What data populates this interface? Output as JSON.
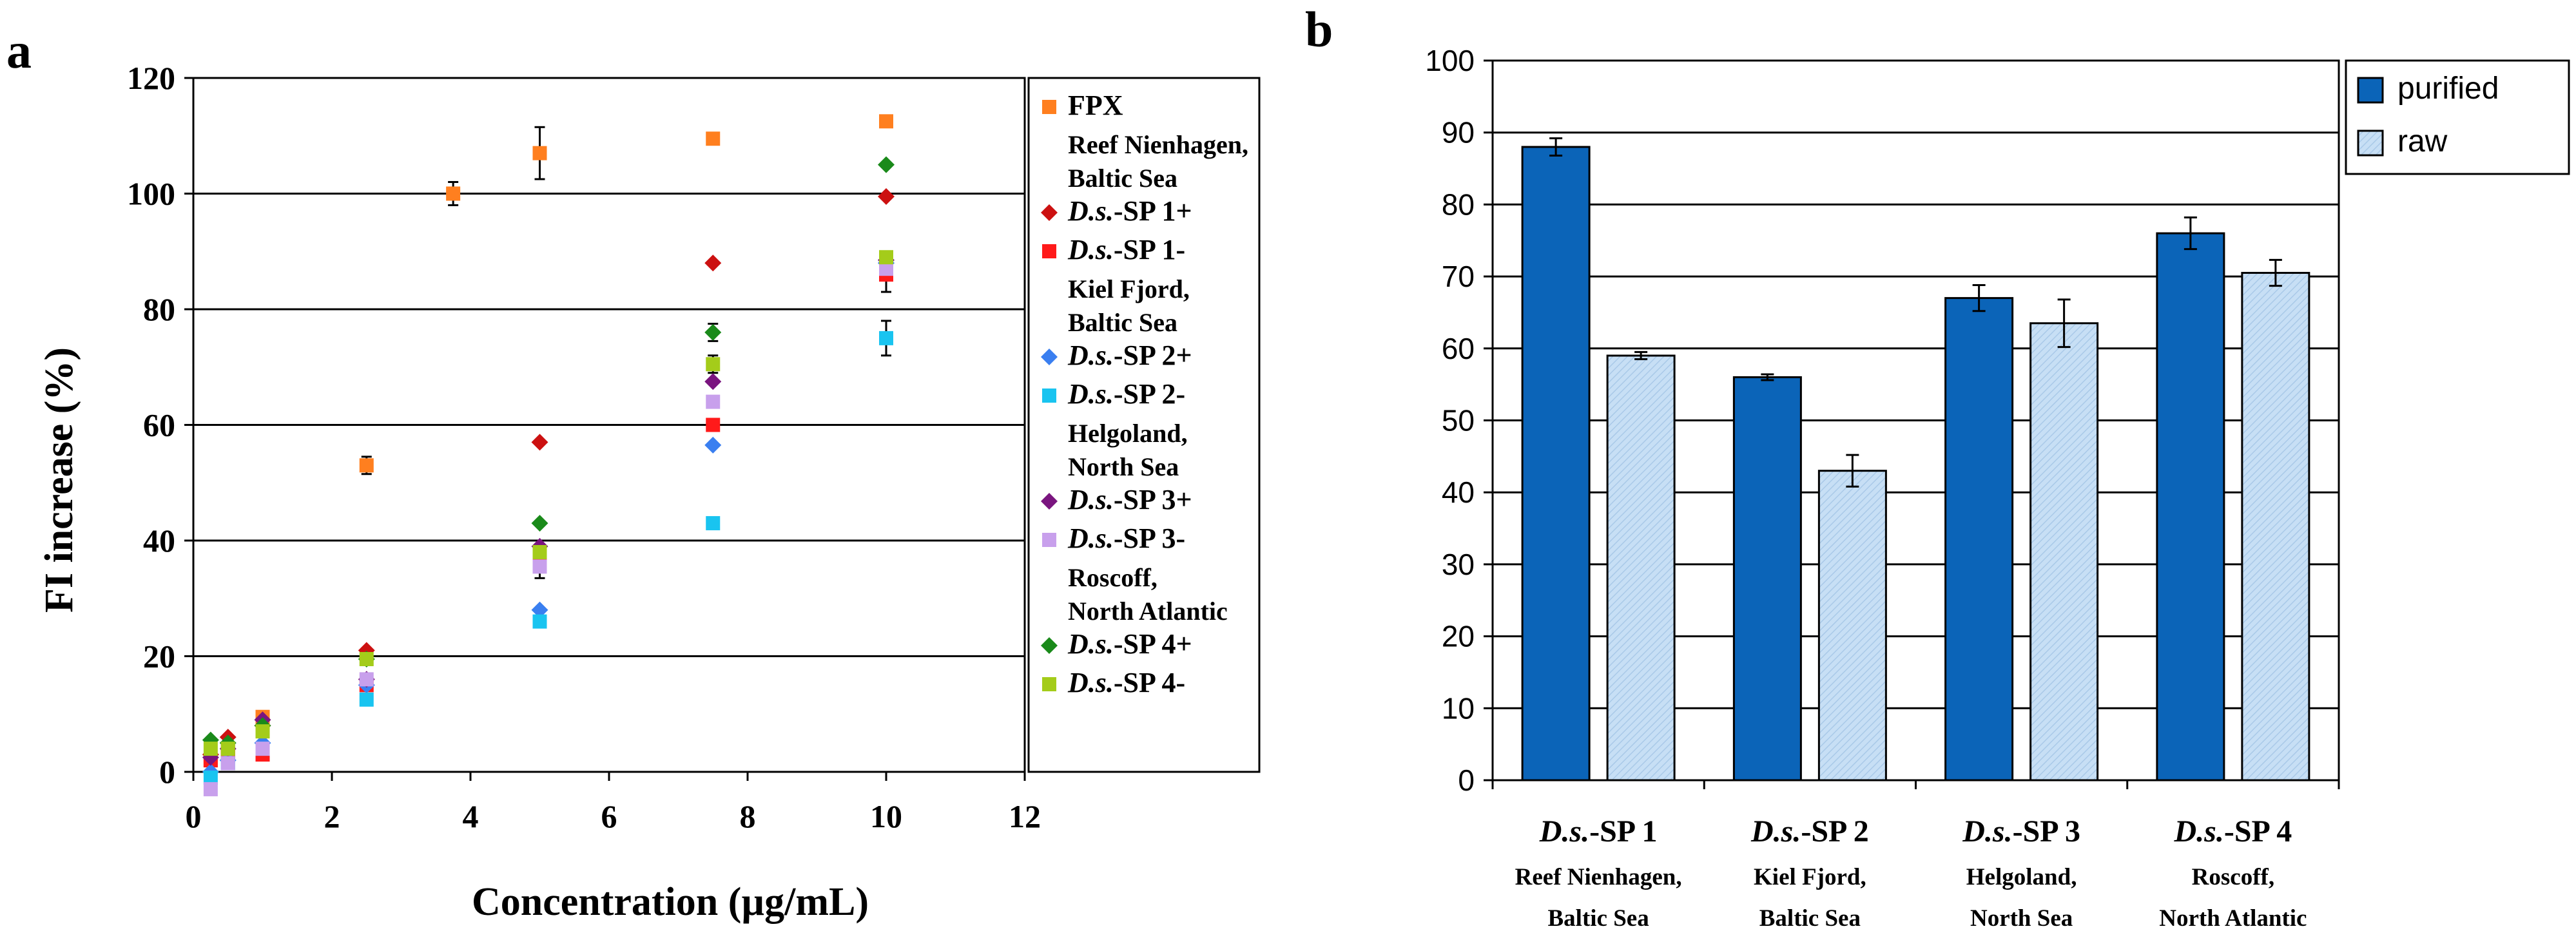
{
  "panel_labels": {
    "a": "a",
    "b": "b"
  },
  "colors": {
    "FPX": "#ff7f1f",
    "sp1p": "#cc1111",
    "sp1m": "#ff1a1a",
    "sp2p": "#3a7ff0",
    "sp2m": "#19c4f0",
    "sp3p": "#7a157f",
    "sp3m": "#c8a0ec",
    "sp4p": "#1a8a1a",
    "sp4m": "#a4cc1a",
    "purified": "#0b64b8",
    "raw": "#c7dff5"
  },
  "chart_data": [
    {
      "type": "scatter",
      "title": "",
      "xlabel": "Concentration (µg/mL)",
      "ylabel": "FI increase (%)",
      "xlim": [
        0,
        12
      ],
      "ylim": [
        0,
        120
      ],
      "xticks": [
        "0",
        "2",
        "4",
        "6",
        "8",
        "10",
        "12"
      ],
      "yticks": [
        "0",
        "20",
        "40",
        "60",
        "80",
        "100",
        "120"
      ],
      "legend": {
        "position": "right",
        "groups": [
          {
            "header": "",
            "entries": [
              {
                "series": "FPX",
                "label": "FPX"
              }
            ]
          },
          {
            "header": "Reef Nienhagen, Baltic Sea",
            "entries": [
              {
                "series": "sp1p",
                "prefix": "D.s.",
                "label": "-SP 1+"
              },
              {
                "series": "sp1m",
                "prefix": "D.s.",
                "label": "-SP 1-"
              }
            ]
          },
          {
            "header": "Kiel Fjord, Baltic Sea",
            "entries": [
              {
                "series": "sp2p",
                "prefix": "D.s.",
                "label": "-SP 2+"
              },
              {
                "series": "sp2m",
                "prefix": "D.s.",
                "label": "-SP 2-"
              }
            ]
          },
          {
            "header": "Helgoland, North Sea",
            "entries": [
              {
                "series": "sp3p",
                "prefix": "D.s.",
                "label": "-SP 3+"
              },
              {
                "series": "sp3m",
                "prefix": "D.s.",
                "label": "-SP 3-"
              }
            ]
          },
          {
            "header": "Roscoff, North Atlantic",
            "entries": [
              {
                "series": "sp4p",
                "prefix": "D.s.",
                "label": "-SP 4+"
              },
              {
                "series": "sp4m",
                "prefix": "D.s.",
                "label": "-SP 4-"
              }
            ]
          }
        ]
      },
      "series": [
        {
          "key": "FPX",
          "name": "FPX",
          "marker": "square",
          "points": [
            [
              0.25,
              2
            ],
            [
              0.5,
              4
            ],
            [
              1,
              9.5
            ],
            [
              2.5,
              53
            ],
            [
              3.75,
              100
            ],
            [
              5,
              107
            ],
            [
              7.5,
              109.5
            ],
            [
              10,
              112.5
            ]
          ],
          "errors": [
            0,
            0,
            0,
            1.5,
            2,
            4.5,
            1,
            1
          ]
        },
        {
          "key": "sp1p",
          "name": "D.s.-SP 1+",
          "marker": "diamond",
          "points": [
            [
              0.25,
              3
            ],
            [
              0.5,
              6
            ],
            [
              1,
              8
            ],
            [
              2.5,
              21
            ],
            [
              5,
              57
            ],
            [
              7.5,
              88
            ],
            [
              10,
              99.5
            ]
          ],
          "errors": [
            0,
            0,
            0,
            0,
            0,
            0,
            0
          ]
        },
        {
          "key": "sp1m",
          "name": "D.s.-SP 1-",
          "marker": "square",
          "points": [
            [
              0.25,
              2
            ],
            [
              0.5,
              3
            ],
            [
              1,
              3
            ],
            [
              2.5,
              15
            ],
            [
              5,
              37
            ],
            [
              7.5,
              60
            ],
            [
              10,
              86
            ]
          ],
          "errors": [
            0,
            0,
            0,
            0,
            0,
            0,
            3
          ]
        },
        {
          "key": "sp2p",
          "name": "D.s.-SP 2+",
          "marker": "diamond",
          "points": [
            [
              0.25,
              0
            ],
            [
              0.5,
              2
            ],
            [
              1,
              5
            ],
            [
              2.5,
              15
            ],
            [
              5,
              28
            ],
            [
              7.5,
              56.5
            ],
            [
              10,
              88
            ]
          ],
          "errors": [
            0,
            0,
            0,
            0,
            0,
            0,
            0
          ]
        },
        {
          "key": "sp2m",
          "name": "D.s.-SP 2-",
          "marker": "square",
          "points": [
            [
              0.25,
              -1
            ],
            [
              0.5,
              1.5
            ],
            [
              1,
              4
            ],
            [
              2.5,
              12.5
            ],
            [
              5,
              26
            ],
            [
              7.5,
              43
            ],
            [
              10,
              75
            ]
          ],
          "errors": [
            0,
            0,
            0,
            0,
            0,
            0,
            3
          ]
        },
        {
          "key": "sp3p",
          "name": "D.s.-SP 3+",
          "marker": "diamond",
          "points": [
            [
              0.25,
              2.5
            ],
            [
              0.5,
              4
            ],
            [
              1,
              9
            ],
            [
              2.5,
              16
            ],
            [
              5,
              39
            ],
            [
              7.5,
              67.5
            ],
            [
              10,
              88.5
            ]
          ],
          "errors": [
            0,
            0,
            0,
            0,
            0,
            0,
            0
          ]
        },
        {
          "key": "sp3m",
          "name": "D.s.-SP 3-",
          "marker": "square",
          "points": [
            [
              0.25,
              -3
            ],
            [
              0.5,
              1.5
            ],
            [
              1,
              4
            ],
            [
              2.5,
              16
            ],
            [
              5,
              35.5
            ],
            [
              7.5,
              64
            ],
            [
              10,
              87
            ]
          ],
          "errors": [
            0,
            0,
            0,
            0,
            2,
            0,
            0
          ]
        },
        {
          "key": "sp4p",
          "name": "D.s.-SP 4+",
          "marker": "diamond",
          "points": [
            [
              0.25,
              5.5
            ],
            [
              0.5,
              5
            ],
            [
              1,
              8
            ],
            [
              2.5,
              19.5
            ],
            [
              5,
              43
            ],
            [
              7.5,
              76
            ],
            [
              10,
              105
            ]
          ],
          "errors": [
            0,
            0,
            0,
            0,
            0,
            1.5,
            0
          ]
        },
        {
          "key": "sp4m",
          "name": "D.s.-SP 4-",
          "marker": "square",
          "points": [
            [
              0.25,
              4
            ],
            [
              0.5,
              4
            ],
            [
              1,
              7
            ],
            [
              2.5,
              19.5
            ],
            [
              5,
              38
            ],
            [
              7.5,
              70.5
            ],
            [
              10,
              89
            ]
          ],
          "errors": [
            0,
            0,
            0,
            0,
            0,
            1.5,
            0
          ]
        }
      ]
    },
    {
      "type": "bar",
      "title": "",
      "xlabel": "",
      "ylabel": "",
      "ylim": [
        0,
        100
      ],
      "yticks": [
        "0",
        "10",
        "20",
        "30",
        "40",
        "50",
        "60",
        "70",
        "80",
        "90",
        "100"
      ],
      "grid": true,
      "categories": [
        {
          "prefix": "D.s.",
          "name": "-SP 1",
          "sub1": "Reef Nienhagen,",
          "sub2": "Baltic Sea"
        },
        {
          "prefix": "D.s.",
          "name": "-SP 2",
          "sub1": "Kiel Fjord,",
          "sub2": "Baltic Sea"
        },
        {
          "prefix": "D.s.",
          "name": "-SP 3",
          "sub1": "Helgoland,",
          "sub2": "North Sea"
        },
        {
          "prefix": "D.s.",
          "name": "-SP 4",
          "sub1": "Roscoff,",
          "sub2": "North Atlantic"
        }
      ],
      "legend": {
        "position": "top-right",
        "entries": [
          "purified",
          "raw"
        ]
      },
      "series": [
        {
          "name": "purified",
          "values": [
            88,
            56,
            67,
            76
          ],
          "errors": [
            1.2,
            0.4,
            1.8,
            2.2
          ]
        },
        {
          "name": "raw",
          "values": [
            59,
            43,
            63.5,
            70.5
          ],
          "errors": [
            0.5,
            2.2,
            3.3,
            1.8
          ]
        }
      ]
    }
  ]
}
